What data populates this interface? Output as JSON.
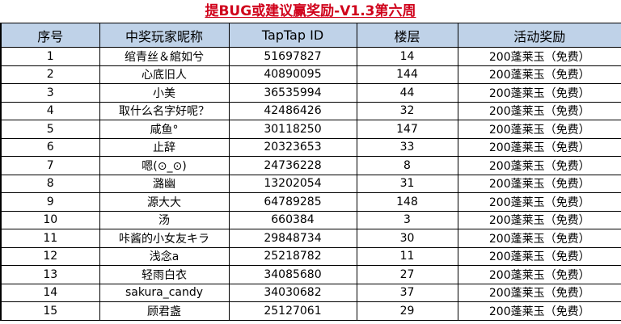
{
  "title": "提BUG或建议赢奖励-V1.3第六周",
  "headers": [
    "序号",
    "中奖玩家昵称",
    "TapTap ID",
    "楼层",
    "活动奖励"
  ],
  "rows": [
    [
      "1",
      "绾青丝＆綰如兮",
      "51697827",
      "14",
      "200蓬莱玉（免费）"
    ],
    [
      "2",
      "心底旧人",
      "40890095",
      "144",
      "200蓬莱玉（免费）"
    ],
    [
      "3",
      "小美",
      "36535994",
      "44",
      "200蓬莱玉（免费）"
    ],
    [
      "4",
      "取什么名字好呢？",
      "42486426",
      "32",
      "200蓬莱玉（免费）"
    ],
    [
      "5",
      "咸鱼°",
      "30118250",
      "147",
      "200蓬莱玉（免费）"
    ],
    [
      "6",
      "止辞",
      "20323653",
      "33",
      "200蓬莱玉（免费）"
    ],
    [
      "7",
      "嗯(⊙_⊙)",
      "24736228",
      "8",
      "200蓬莱玉（免费）"
    ],
    [
      "8",
      "潞幽",
      "13202054",
      "31",
      "200蓬莱玉（免费）"
    ],
    [
      "9",
      "源大大",
      "64789285",
      "148",
      "200蓬莱玉（免费）"
    ],
    [
      "10",
      "汤",
      "660384",
      "3",
      "200蓬莱玉（免费）"
    ],
    [
      "11",
      "咔酱的小女友キラ",
      "29848734",
      "30",
      "200蓬莱玉（免费）"
    ],
    [
      "12",
      "浅念a",
      "25218782",
      "11",
      "200蓬莱玉（免费）"
    ],
    [
      "13",
      "轻雨白衣",
      "34085680",
      "27",
      "200蓬莱玉（免费）"
    ],
    [
      "14",
      "sakura_candy",
      "34030682",
      "37",
      "200蓬莱玉（免费）"
    ],
    [
      "15",
      "顾君盏",
      "25127061",
      "29",
      "200蓬莱玉（免费）"
    ]
  ],
  "colors": {
    "title": "#d0021b",
    "header_bg": "#bfd2e8",
    "grid": "#000000"
  }
}
